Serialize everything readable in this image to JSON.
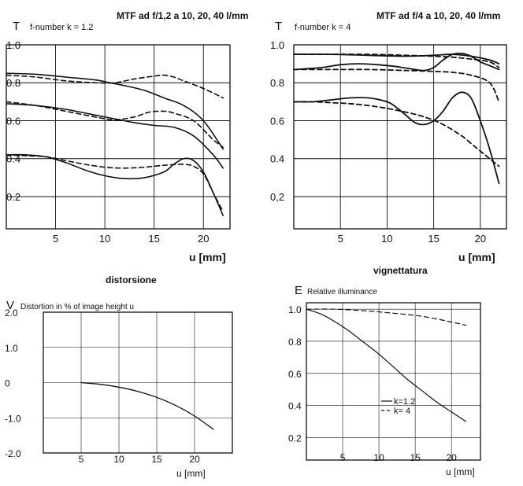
{
  "chart_data": [
    {
      "id": "mtf1",
      "type": "line",
      "title": "MTF ad f/1,2 a 10, 20, 40 l/mm",
      "subtitle": "f-number k = 1.2",
      "ylabel": "T",
      "xlabel": "u [mm]",
      "xlim": [
        0,
        22.7
      ],
      "ylim": [
        0.03,
        1.0
      ],
      "xticks": [
        "5",
        "10",
        "15",
        "20"
      ],
      "yticks": [
        "1.0",
        "0.8",
        "0.6",
        "0.4",
        "0.2"
      ],
      "grid": true,
      "series": [
        {
          "style": "solid",
          "x": [
            0,
            3,
            6,
            9,
            10.5,
            12,
            14,
            16,
            18,
            20,
            22
          ],
          "y": [
            0.85,
            0.845,
            0.83,
            0.815,
            0.8,
            0.785,
            0.76,
            0.72,
            0.68,
            0.6,
            0.45
          ]
        },
        {
          "style": "dashed",
          "x": [
            0,
            3,
            6,
            9,
            11,
            13,
            15,
            16,
            17,
            18,
            20,
            22
          ],
          "y": [
            0.84,
            0.83,
            0.81,
            0.8,
            0.8,
            0.82,
            0.835,
            0.84,
            0.83,
            0.81,
            0.77,
            0.72
          ]
        },
        {
          "style": "solid",
          "x": [
            0,
            3,
            6,
            9,
            11,
            13,
            15,
            17,
            19,
            21,
            22
          ],
          "y": [
            0.69,
            0.68,
            0.66,
            0.63,
            0.61,
            0.59,
            0.575,
            0.565,
            0.52,
            0.42,
            0.35
          ]
        },
        {
          "style": "dashed",
          "x": [
            0,
            3,
            6,
            9,
            11,
            13,
            14.5,
            16,
            17,
            19,
            21,
            22
          ],
          "y": [
            0.7,
            0.68,
            0.65,
            0.62,
            0.605,
            0.62,
            0.645,
            0.65,
            0.64,
            0.6,
            0.5,
            0.46
          ]
        },
        {
          "style": "solid",
          "x": [
            0,
            2,
            4,
            6,
            8,
            10,
            12,
            14,
            16,
            17,
            18,
            19,
            20,
            21,
            22
          ],
          "y": [
            0.42,
            0.42,
            0.41,
            0.38,
            0.34,
            0.31,
            0.295,
            0.3,
            0.33,
            0.37,
            0.4,
            0.39,
            0.33,
            0.22,
            0.1
          ]
        },
        {
          "style": "dashed",
          "x": [
            0,
            2,
            4,
            6,
            8,
            10,
            12,
            14,
            16,
            18,
            19,
            20,
            21,
            22
          ],
          "y": [
            0.42,
            0.415,
            0.41,
            0.39,
            0.37,
            0.355,
            0.35,
            0.355,
            0.365,
            0.37,
            0.36,
            0.32,
            0.22,
            0.12
          ]
        }
      ]
    },
    {
      "id": "mtf4",
      "type": "line",
      "title": "MTF ad f/4 a 10, 20, 40 l/mm",
      "subtitle": "f-number k = 4",
      "ylabel": "T",
      "xlabel": "u [mm]",
      "xlim": [
        0,
        22.8
      ],
      "ylim": [
        0.03,
        1.0
      ],
      "xticks": [
        "5",
        "10",
        "15",
        "20"
      ],
      "yticks": [
        "1.0",
        "0.8",
        "0.6",
        "0.4",
        "0,2"
      ],
      "grid": true,
      "series": [
        {
          "style": "solid",
          "x": [
            0,
            4,
            8,
            12,
            15,
            17,
            19,
            21,
            22
          ],
          "y": [
            0.95,
            0.95,
            0.945,
            0.94,
            0.945,
            0.95,
            0.94,
            0.92,
            0.9
          ]
        },
        {
          "style": "dashed",
          "x": [
            0,
            4,
            8,
            12,
            15,
            17,
            19,
            21,
            22
          ],
          "y": [
            0.95,
            0.95,
            0.95,
            0.945,
            0.94,
            0.935,
            0.925,
            0.91,
            0.88
          ]
        },
        {
          "style": "solid",
          "x": [
            0,
            3,
            5,
            7,
            9,
            11,
            13,
            14,
            15,
            16,
            17,
            18,
            19,
            20,
            21,
            22
          ],
          "y": [
            0.87,
            0.88,
            0.895,
            0.9,
            0.895,
            0.885,
            0.87,
            0.865,
            0.88,
            0.92,
            0.95,
            0.955,
            0.94,
            0.91,
            0.89,
            0.87
          ]
        },
        {
          "style": "dashed",
          "x": [
            0,
            4,
            8,
            12,
            15,
            17,
            19,
            21,
            22
          ],
          "y": [
            0.87,
            0.87,
            0.87,
            0.865,
            0.86,
            0.855,
            0.84,
            0.8,
            0.7
          ]
        },
        {
          "style": "solid",
          "x": [
            0,
            2,
            4,
            6,
            8,
            10,
            11,
            12,
            13,
            14,
            15,
            16,
            17,
            18,
            19,
            20,
            21,
            22
          ],
          "y": [
            0.7,
            0.7,
            0.71,
            0.72,
            0.72,
            0.7,
            0.67,
            0.63,
            0.59,
            0.58,
            0.6,
            0.65,
            0.72,
            0.75,
            0.72,
            0.6,
            0.45,
            0.27
          ]
        },
        {
          "style": "dashed",
          "x": [
            0,
            2,
            4,
            6,
            8,
            10,
            12,
            14,
            16,
            18,
            19,
            20,
            21,
            22
          ],
          "y": [
            0.7,
            0.7,
            0.695,
            0.69,
            0.68,
            0.665,
            0.645,
            0.62,
            0.58,
            0.52,
            0.48,
            0.44,
            0.4,
            0.36
          ]
        }
      ]
    },
    {
      "id": "dist",
      "type": "line",
      "title": "distorsione",
      "subtitle": "Distortion in % of image height u",
      "ylabel": "V",
      "xlabel": "u [mm]",
      "xlim": [
        0,
        25
      ],
      "ylim": [
        -2.0,
        2.0
      ],
      "xticks": [
        "5",
        "10",
        "15",
        "20"
      ],
      "yticks": [
        "2.0",
        "1.0",
        "0",
        "-1.0",
        "-2.0"
      ],
      "grid": true,
      "series": [
        {
          "style": "solid",
          "x": [
            5,
            7.5,
            10,
            12.5,
            15,
            17.5,
            20,
            22.5
          ],
          "y": [
            0.0,
            -0.05,
            -0.13,
            -0.25,
            -0.42,
            -0.65,
            -0.95,
            -1.33
          ]
        }
      ]
    },
    {
      "id": "vign",
      "type": "line",
      "title": "vignettatura",
      "subtitle": "Relative illuminance",
      "ylabel": "E",
      "xlabel": "u [mm]",
      "xlim": [
        0,
        24
      ],
      "ylim": [
        0.06,
        1.04
      ],
      "xticks": [
        "5",
        "10",
        "15",
        "20"
      ],
      "yticks": [
        "1.0",
        "0.8",
        "0.6",
        "0.4",
        "0.2"
      ],
      "grid": true,
      "legend": {
        "position": "bottom-right",
        "entries": [
          {
            "label": "k=1.2",
            "style": "solid"
          },
          {
            "label": "k= 4",
            "style": "dashed"
          }
        ]
      },
      "series": [
        {
          "name": "k=1.2",
          "style": "solid",
          "x": [
            0,
            2,
            4,
            6,
            8,
            10,
            12,
            14,
            16,
            18,
            20,
            22
          ],
          "y": [
            1.0,
            0.97,
            0.92,
            0.86,
            0.79,
            0.72,
            0.64,
            0.56,
            0.49,
            0.42,
            0.36,
            0.3
          ]
        },
        {
          "name": "k= 4",
          "style": "dashed",
          "x": [
            0,
            4,
            8,
            12,
            16,
            20,
            22
          ],
          "y": [
            1.0,
            1.0,
            0.99,
            0.975,
            0.955,
            0.92,
            0.9
          ]
        }
      ]
    }
  ]
}
